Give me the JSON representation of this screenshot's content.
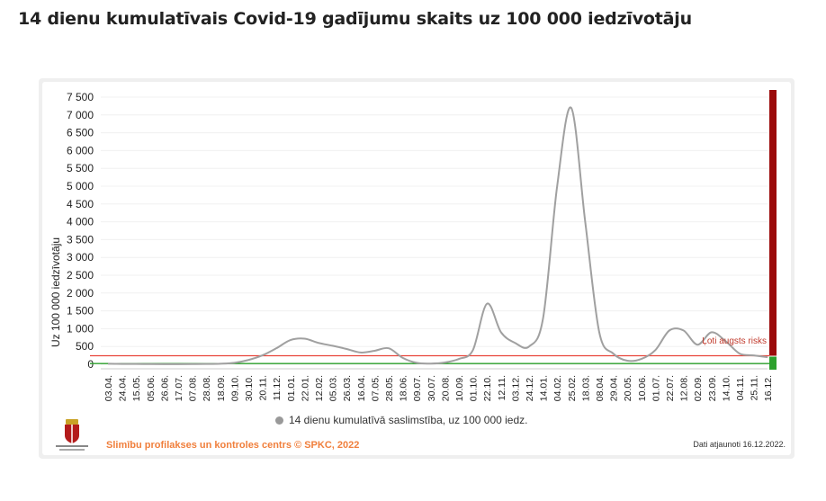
{
  "page_title": "14 dienu kumulatīvais Covid-19 gadījumu skaits uz 100 000 iedzīvotāju",
  "source_text": "Slimību profilakses un kontroles centrs © SPKC, 2022",
  "updated_text": "Dati atjaunoti 16.12.2022.",
  "legend_text": "14 dienu kumulatīvā saslimstība, uz 100 000 iedz.",
  "risk_label": "Ļoti augsts risks",
  "colors": {
    "line": "#a0a0a0",
    "threshold_green": "#2ca02c",
    "threshold_red": "#e8443a",
    "risk_bar": "#9b0a0a"
  },
  "chart_data": {
    "type": "line",
    "ylabel": "Uz 100 000 iedzīvotāju",
    "ylim": [
      0,
      7500
    ],
    "yticks": [
      "0",
      "500",
      "1 000",
      "1 500",
      "2 000",
      "2 500",
      "3 000",
      "3 500",
      "4 000",
      "4 500",
      "5 000",
      "5 500",
      "6 000",
      "6 500",
      "7 000",
      "7 500"
    ],
    "x_tick_labels": [
      "03.04.",
      "24.04.",
      "15.05.",
      "05.06.",
      "26.06.",
      "17.07.",
      "07.08.",
      "28.08.",
      "18.09.",
      "09.10.",
      "30.10.",
      "20.11.",
      "11.12.",
      "01.01.",
      "22.01.",
      "12.02.",
      "05.03.",
      "26.03.",
      "16.04.",
      "07.05.",
      "28.05.",
      "18.06.",
      "09.07.",
      "30.07.",
      "20.08.",
      "10.09.",
      "01.10.",
      "22.10.",
      "12.11.",
      "03.12.",
      "24.12.",
      "14.01.",
      "04.02.",
      "25.02.",
      "18.03.",
      "08.04.",
      "29.04.",
      "20.05.",
      "10.06.",
      "01.07.",
      "22.07.",
      "12.08.",
      "02.09.",
      "23.09.",
      "14.10.",
      "04.11.",
      "25.11.",
      "16.12."
    ],
    "thresholds": [
      {
        "value": 20,
        "color": "green"
      },
      {
        "value": 240,
        "color": "red"
      }
    ],
    "series": [
      {
        "name": "14 dienu kumulatīvā saslimstība, uz 100 000 iedz.",
        "values": [
          15,
          10,
          10,
          5,
          3,
          3,
          5,
          8,
          15,
          40,
          120,
          250,
          450,
          680,
          720,
          600,
          520,
          430,
          330,
          380,
          450,
          180,
          40,
          20,
          50,
          150,
          400,
          1700,
          900,
          600,
          500,
          1300,
          5000,
          7200,
          4000,
          900,
          300,
          100,
          150,
          400,
          950,
          950,
          550,
          900,
          650,
          300,
          250,
          200
        ]
      }
    ]
  }
}
